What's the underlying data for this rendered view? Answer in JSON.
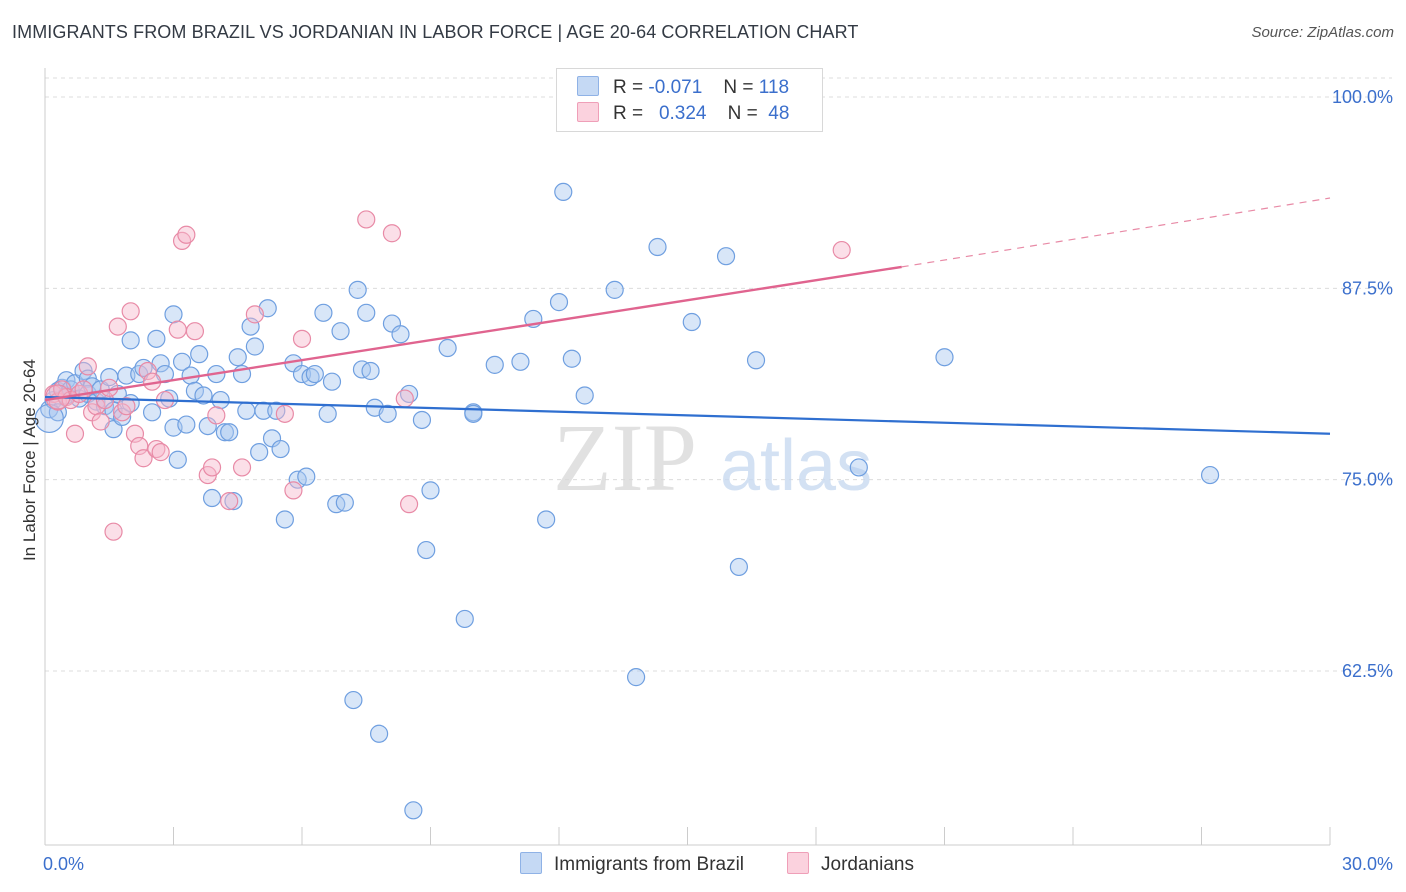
{
  "title": "IMMIGRANTS FROM BRAZIL VS JORDANIAN IN LABOR FORCE | AGE 20-64 CORRELATION CHART",
  "source": "Source: ZipAtlas.com",
  "watermark": {
    "zip": "ZIP",
    "atlas": "atlas"
  },
  "legend": {
    "rows": [
      {
        "r_label": "R =",
        "r_value": "-0.071",
        "n_label": "N =",
        "n_value": "118",
        "color": "#a9c7f0"
      },
      {
        "r_label": "R =",
        "r_value": "0.324",
        "n_label": "N =",
        "n_value": "48",
        "color": "#f7b8cb"
      }
    ]
  },
  "bottom_legend": [
    {
      "label": "Immigrants from Brazil",
      "color": "#a9c7f0"
    },
    {
      "label": "Jordanians",
      "color": "#f7b8cb"
    }
  ],
  "chart_data": {
    "type": "scatter",
    "title": "IMMIGRANTS FROM BRAZIL VS JORDANIAN IN LABOR FORCE | AGE 20-64 CORRELATION CHART",
    "xlabel": "",
    "ylabel": "In Labor Force | Age 20-64",
    "xlim": [
      0,
      30
    ],
    "ylim": [
      50,
      101.5
    ],
    "x_tick_labels": [
      "0.0%",
      "30.0%"
    ],
    "y_ticks": [
      62.5,
      75.0,
      87.5,
      100.0
    ],
    "y_tick_labels": [
      "62.5%",
      "75.0%",
      "87.5%",
      "100.0%"
    ],
    "grid": true,
    "series": [
      {
        "name": "Immigrants from Brazil",
        "color": "#6f9fe0",
        "fill": "#a9c7f0",
        "trend": {
          "x": [
            0,
            30
          ],
          "y": [
            80.4,
            78.0
          ]
        },
        "points": [
          [
            0.1,
            79.6
          ],
          [
            0.2,
            80.2
          ],
          [
            0.3,
            80.8
          ],
          [
            0.3,
            79.4
          ],
          [
            0.4,
            81.0
          ],
          [
            0.5,
            80.5
          ],
          [
            0.5,
            81.5
          ],
          [
            0.6,
            80.9
          ],
          [
            0.7,
            81.3
          ],
          [
            0.8,
            80.3
          ],
          [
            0.9,
            82.1
          ],
          [
            1.0,
            81.6
          ],
          [
            1.0,
            80.6
          ],
          [
            1.1,
            81.1
          ],
          [
            1.2,
            80.1
          ],
          [
            1.3,
            80.9
          ],
          [
            1.4,
            79.8
          ],
          [
            1.5,
            81.7
          ],
          [
            1.6,
            79.5
          ],
          [
            1.6,
            78.3
          ],
          [
            1.7,
            80.6
          ],
          [
            1.8,
            79.1
          ],
          [
            1.9,
            81.8
          ],
          [
            2.0,
            80.0
          ],
          [
            2.0,
            84.1
          ],
          [
            2.2,
            81.9
          ],
          [
            2.3,
            82.3
          ],
          [
            2.5,
            79.4
          ],
          [
            2.6,
            84.2
          ],
          [
            2.7,
            82.6
          ],
          [
            2.8,
            81.9
          ],
          [
            2.9,
            80.3
          ],
          [
            3.0,
            85.8
          ],
          [
            3.0,
            78.4
          ],
          [
            3.1,
            76.3
          ],
          [
            3.2,
            82.7
          ],
          [
            3.3,
            78.6
          ],
          [
            3.4,
            81.8
          ],
          [
            3.5,
            80.8
          ],
          [
            3.6,
            83.2
          ],
          [
            3.7,
            80.5
          ],
          [
            3.8,
            78.5
          ],
          [
            3.9,
            73.8
          ],
          [
            4.0,
            81.9
          ],
          [
            4.1,
            80.2
          ],
          [
            4.2,
            78.1
          ],
          [
            4.3,
            78.1
          ],
          [
            4.4,
            73.6
          ],
          [
            4.5,
            83.0
          ],
          [
            4.6,
            81.9
          ],
          [
            4.7,
            79.5
          ],
          [
            4.8,
            85.0
          ],
          [
            4.9,
            83.7
          ],
          [
            5.0,
            76.8
          ],
          [
            5.1,
            79.5
          ],
          [
            5.2,
            86.2
          ],
          [
            5.3,
            77.7
          ],
          [
            5.4,
            79.5
          ],
          [
            5.5,
            77.0
          ],
          [
            5.6,
            72.4
          ],
          [
            5.8,
            82.6
          ],
          [
            5.9,
            75.0
          ],
          [
            6.0,
            81.9
          ],
          [
            6.1,
            75.2
          ],
          [
            6.2,
            81.7
          ],
          [
            6.3,
            81.9
          ],
          [
            6.5,
            85.9
          ],
          [
            6.6,
            79.3
          ],
          [
            6.7,
            81.4
          ],
          [
            6.8,
            73.4
          ],
          [
            6.9,
            84.7
          ],
          [
            7.0,
            73.5
          ],
          [
            7.2,
            60.6
          ],
          [
            7.3,
            87.4
          ],
          [
            7.4,
            82.2
          ],
          [
            7.5,
            85.9
          ],
          [
            7.6,
            82.1
          ],
          [
            7.7,
            79.7
          ],
          [
            7.8,
            58.4
          ],
          [
            8.0,
            79.3
          ],
          [
            8.1,
            85.2
          ],
          [
            8.3,
            84.5
          ],
          [
            8.5,
            80.6
          ],
          [
            8.6,
            53.4
          ],
          [
            8.8,
            78.9
          ],
          [
            8.9,
            70.4
          ],
          [
            9.0,
            74.3
          ],
          [
            9.4,
            83.6
          ],
          [
            9.8,
            65.9
          ],
          [
            10.0,
            79.4
          ],
          [
            10.0,
            79.3
          ],
          [
            10.5,
            82.5
          ],
          [
            11.1,
            82.7
          ],
          [
            11.4,
            85.5
          ],
          [
            11.7,
            72.4
          ],
          [
            12.0,
            86.6
          ],
          [
            12.1,
            93.8
          ],
          [
            12.3,
            82.9
          ],
          [
            12.6,
            80.5
          ],
          [
            13.3,
            87.4
          ],
          [
            13.8,
            62.1
          ],
          [
            14.3,
            90.2
          ],
          [
            15.1,
            85.3
          ],
          [
            15.9,
            89.6
          ],
          [
            16.2,
            69.3
          ],
          [
            16.6,
            82.8
          ],
          [
            19.0,
            75.8
          ],
          [
            21.0,
            83.0
          ],
          [
            27.2,
            75.3
          ]
        ]
      },
      {
        "name": "Jordanians",
        "color": "#e88aa6",
        "fill": "#f7b8cb",
        "trend": {
          "x": [
            0,
            20
          ],
          "y": [
            80.2,
            88.9
          ]
        },
        "trend_ext": {
          "x": [
            20,
            30
          ],
          "y": [
            88.9,
            93.4
          ]
        },
        "points": [
          [
            0.2,
            80.6
          ],
          [
            0.3,
            80.1
          ],
          [
            0.4,
            80.9
          ],
          [
            0.5,
            80.4
          ],
          [
            0.6,
            80.2
          ],
          [
            0.7,
            78.0
          ],
          [
            0.8,
            80.6
          ],
          [
            0.9,
            80.9
          ],
          [
            1.0,
            82.4
          ],
          [
            1.1,
            79.4
          ],
          [
            1.2,
            79.8
          ],
          [
            1.3,
            78.8
          ],
          [
            1.4,
            80.2
          ],
          [
            1.5,
            81.0
          ],
          [
            1.6,
            71.6
          ],
          [
            1.7,
            85.0
          ],
          [
            1.8,
            79.4
          ],
          [
            1.9,
            79.8
          ],
          [
            2.0,
            86.0
          ],
          [
            2.1,
            78.0
          ],
          [
            2.2,
            77.2
          ],
          [
            2.3,
            76.4
          ],
          [
            2.4,
            82.1
          ],
          [
            2.5,
            81.4
          ],
          [
            2.6,
            77.0
          ],
          [
            2.7,
            76.8
          ],
          [
            2.8,
            80.2
          ],
          [
            3.1,
            84.8
          ],
          [
            3.2,
            90.6
          ],
          [
            3.3,
            91.0
          ],
          [
            3.5,
            84.7
          ],
          [
            3.8,
            75.3
          ],
          [
            3.9,
            75.8
          ],
          [
            4.0,
            79.2
          ],
          [
            4.3,
            73.6
          ],
          [
            4.6,
            75.8
          ],
          [
            4.9,
            85.8
          ],
          [
            5.6,
            79.3
          ],
          [
            5.8,
            74.3
          ],
          [
            6.0,
            84.2
          ],
          [
            7.5,
            92.0
          ],
          [
            8.1,
            91.1
          ],
          [
            8.4,
            80.3
          ],
          [
            8.5,
            73.4
          ],
          [
            18.6,
            90.0
          ]
        ]
      }
    ]
  }
}
